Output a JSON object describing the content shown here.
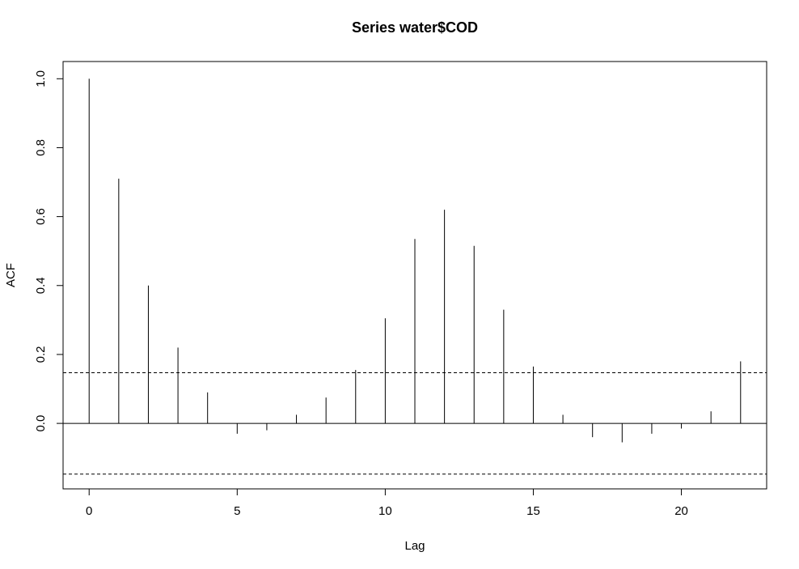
{
  "chart_data": {
    "type": "bar",
    "title": "Series  water$COD",
    "xlabel": "Lag",
    "ylabel": "ACF",
    "x": [
      0,
      1,
      2,
      3,
      4,
      5,
      6,
      7,
      8,
      9,
      10,
      11,
      12,
      13,
      14,
      15,
      16,
      17,
      18,
      19,
      20,
      21,
      22
    ],
    "values": [
      1.0,
      0.71,
      0.4,
      0.22,
      0.09,
      -0.03,
      -0.02,
      0.025,
      0.075,
      0.155,
      0.305,
      0.535,
      0.62,
      0.515,
      0.33,
      0.165,
      0.025,
      -0.04,
      -0.055,
      -0.03,
      -0.015,
      0.035,
      0.18
    ],
    "confidence_bound": 0.147,
    "xlim": [
      -0.88,
      22.88
    ],
    "ylim": [
      -0.19,
      1.05
    ],
    "xticks": [
      0,
      5,
      10,
      15,
      20
    ],
    "yticks": [
      0.0,
      0.2,
      0.4,
      0.6,
      0.8,
      1.0
    ],
    "xtick_labels": [
      "0",
      "5",
      "10",
      "15",
      "20"
    ],
    "ytick_labels": [
      "0.0",
      "0.2",
      "0.4",
      "0.6",
      "0.8",
      "1.0"
    ],
    "grid": false
  }
}
